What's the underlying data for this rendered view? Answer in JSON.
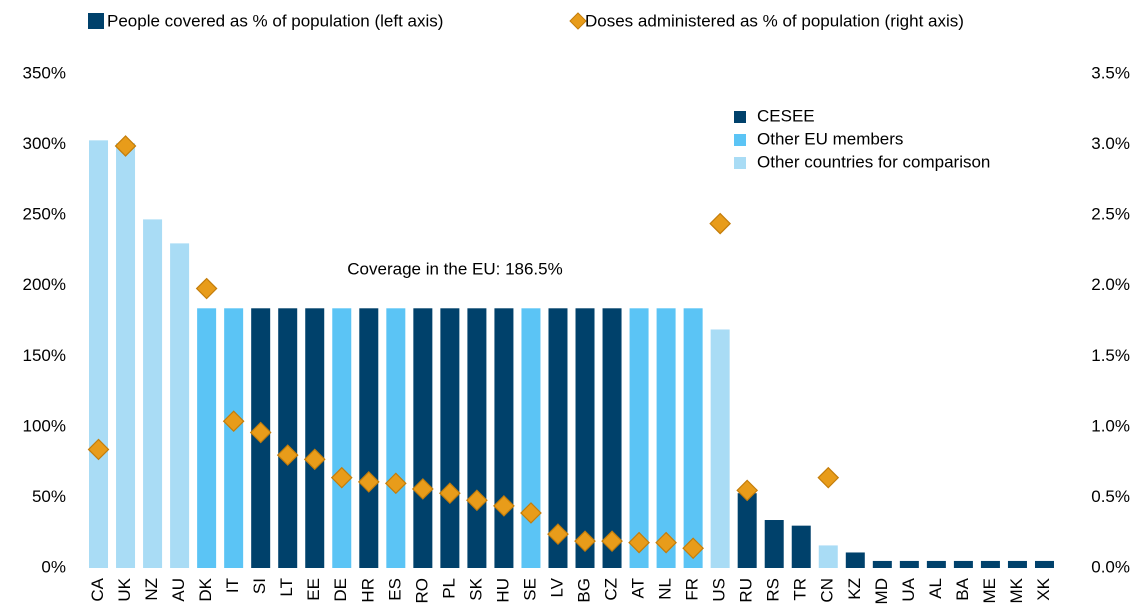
{
  "chart_data": {
    "type": "bar",
    "categories": [
      "CA",
      "UK",
      "NZ",
      "AU",
      "DK",
      "IT",
      "SI",
      "LT",
      "EE",
      "DE",
      "HR",
      "ES",
      "RO",
      "PL",
      "SK",
      "HU",
      "SE",
      "LV",
      "BG",
      "CZ",
      "AT",
      "NL",
      "FR",
      "US",
      "RU",
      "RS",
      "TR",
      "CN",
      "KZ",
      "MD",
      "UA",
      "AL",
      "BA",
      "ME",
      "MK",
      "XK"
    ],
    "series": [
      {
        "name": "People covered as % of population (left axis)",
        "type": "bar",
        "color": "#00416b",
        "values": [
          303,
          301,
          247,
          230,
          184,
          184,
          184,
          184,
          184,
          184,
          184,
          184,
          184,
          184,
          184,
          184,
          184,
          184,
          184,
          184,
          184,
          184,
          184,
          169,
          53,
          34,
          30,
          16,
          11,
          5,
          5,
          5,
          5,
          5,
          5,
          5
        ],
        "colors": [
          "#a9dcf5",
          "#a9dcf5",
          "#a9dcf5",
          "#a9dcf5",
          "#5bc4f5",
          "#5bc4f5",
          "#00416b",
          "#00416b",
          "#00416b",
          "#5bc4f5",
          "#00416b",
          "#5bc4f5",
          "#00416b",
          "#00416b",
          "#00416b",
          "#00416b",
          "#5bc4f5",
          "#00416b",
          "#00416b",
          "#00416b",
          "#5bc4f5",
          "#5bc4f5",
          "#5bc4f5",
          "#a9dcf5",
          "#00416b",
          "#00416b",
          "#00416b",
          "#a9dcf5",
          "#00416b",
          "#00416b",
          "#00416b",
          "#00416b",
          "#00416b",
          "#00416b",
          "#00416b",
          "#00416b"
        ]
      },
      {
        "name": "Doses administered as % of population (right axis)",
        "type": "scatter",
        "axis": "y2",
        "color": "#e89c1a",
        "values": [
          0.84,
          2.99,
          null,
          null,
          1.98,
          1.04,
          0.96,
          0.8,
          0.77,
          0.64,
          0.61,
          0.6,
          0.56,
          0.53,
          0.48,
          0.44,
          0.39,
          0.24,
          0.19,
          0.19,
          0.18,
          0.18,
          0.14,
          2.44,
          0.55,
          null,
          null,
          0.64,
          null,
          null,
          null,
          null,
          null,
          null,
          null,
          null
        ]
      }
    ],
    "group_legend": [
      {
        "name": "CESEE",
        "color": "#00416b"
      },
      {
        "name": "Other EU members",
        "color": "#5bc4f5"
      },
      {
        "name": "Other countries for comparison",
        "color": "#a9dcf5"
      }
    ],
    "annotations": [
      "Coverage in the EU: 186.5%"
    ],
    "ylim": [
      0,
      350
    ],
    "yticks": [
      {
        "value": 0,
        "label": "0%"
      },
      {
        "value": 50,
        "label": "50%"
      },
      {
        "value": 100,
        "label": "100%"
      },
      {
        "value": 150,
        "label": "150%"
      },
      {
        "value": 200,
        "label": "200%"
      },
      {
        "value": 250,
        "label": "250%"
      },
      {
        "value": 300,
        "label": "300%"
      },
      {
        "value": 350,
        "label": "350%"
      }
    ],
    "y2lim": [
      0,
      3.5
    ],
    "y2ticks": [
      {
        "value": 0,
        "label": "0.0%"
      },
      {
        "value": 0.5,
        "label": "0.5%"
      },
      {
        "value": 1,
        "label": "1.0%"
      },
      {
        "value": 1.5,
        "label": "1.5%"
      },
      {
        "value": 2,
        "label": "2.0%"
      },
      {
        "value": 2.5,
        "label": "2.5%"
      },
      {
        "value": 3,
        "label": "3.0%"
      },
      {
        "value": 3.5,
        "label": "3.5%"
      }
    ]
  }
}
